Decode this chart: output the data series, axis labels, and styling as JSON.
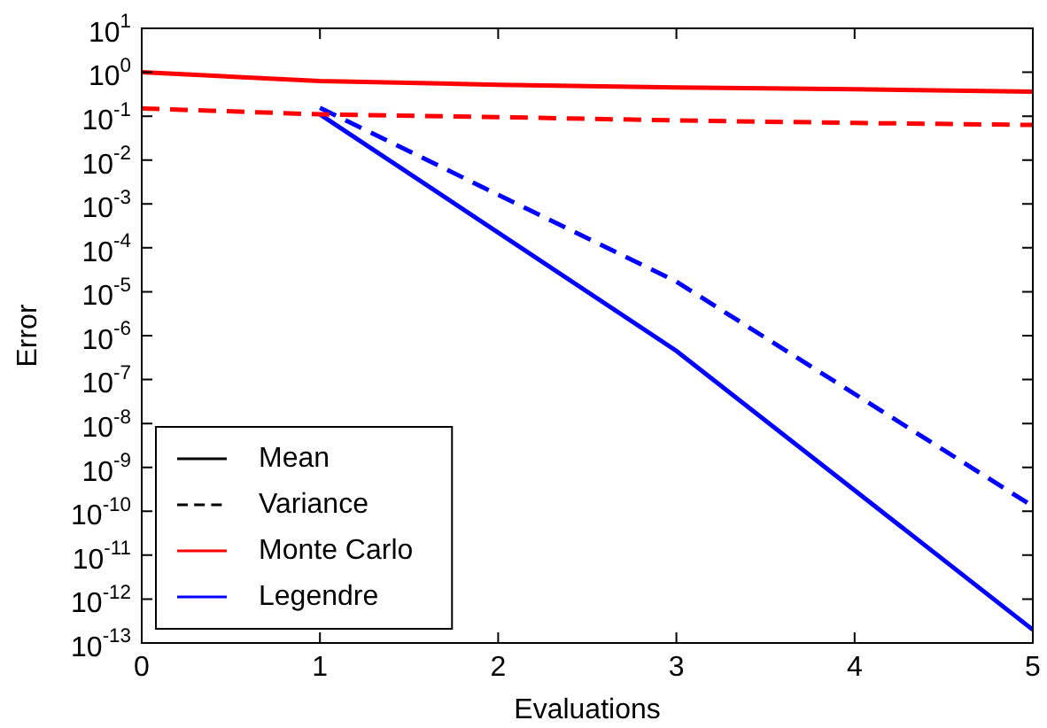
{
  "chart_data": {
    "type": "line",
    "xlabel": "Evaluations",
    "ylabel": "Error",
    "log": "y",
    "grid": false,
    "legend": "bottom left",
    "marker": "none",
    "xlim": [
      0,
      5
    ],
    "xticks": [
      0,
      1,
      2,
      3,
      4,
      5
    ],
    "ylim": [
      1e-13,
      10
    ],
    "yticks": [
      {
        "value": 10,
        "label": "10$^{1}$"
      },
      {
        "value": 1,
        "label": "10$^{0}$"
      },
      {
        "value": 0.1,
        "label": "10$^{-1}$"
      },
      {
        "value": 0.01,
        "label": "10$^{-2}$"
      },
      {
        "value": 0.001,
        "label": "10$^{-3}$"
      },
      {
        "value": 0.0001,
        "label": "10$^{-4}$"
      },
      {
        "value": 1e-05,
        "label": "10$^{-5}$"
      },
      {
        "value": 1e-06,
        "label": "10$^{-6}$"
      },
      {
        "value": 1e-07,
        "label": "10$^{-7}$"
      },
      {
        "value": 1e-08,
        "label": "10$^{-8}$"
      },
      {
        "value": 1e-09,
        "label": "10$^{-9}$"
      },
      {
        "value": 1e-10,
        "label": "10$^{-10}$"
      },
      {
        "value": 1e-11,
        "label": "10$^{-11}$"
      },
      {
        "value": 1e-12,
        "label": "10$^{-12}$"
      },
      {
        "value": 1e-13,
        "label": "10$^{-13}$"
      }
    ],
    "series": [
      {
        "name": "Mean",
        "color": "#000000",
        "line_style": "solid"
      },
      {
        "name": "Variance",
        "color": "#000000",
        "line_style": "dashed"
      },
      {
        "name": "Monte Carlo",
        "color": "#ff0000",
        "line_style": "solid",
        "x": [
          0,
          1,
          2,
          3,
          4,
          5
        ],
        "values": [
          1.0,
          0.63,
          0.52,
          0.45,
          0.41,
          0.36
        ]
      },
      {
        "color": "#ff0000",
        "line_style": "dashed",
        "x": [
          0,
          1,
          2,
          3,
          4,
          5
        ],
        "values": [
          0.15,
          0.11,
          0.095,
          0.08,
          0.07,
          0.063
        ]
      },
      {
        "name": "Legendre",
        "color": "#0000ff",
        "line_style": "solid",
        "x": [
          1,
          3,
          5
        ],
        "values": [
          0.11,
          4.5e-07,
          2e-13
        ]
      },
      {
        "color": "#0000ff",
        "line_style": "dashed",
        "x": [
          1,
          3,
          5
        ],
        "values": [
          0.155,
          1.7e-05,
          1.3e-10
        ]
      }
    ]
  }
}
